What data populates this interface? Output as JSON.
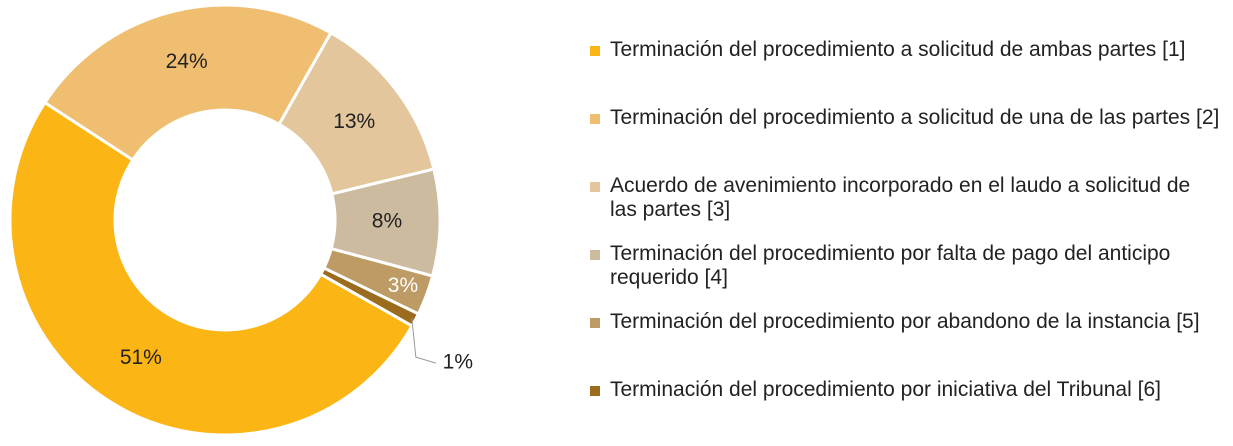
{
  "chart_data": {
    "type": "donut",
    "categories": [
      "Terminación del procedimiento a solicitud de ambas partes [1]",
      "Terminación del procedimiento a solicitud de una de las partes [2]",
      "Acuerdo de avenimiento incorporado en el laudo a solicitud de las partes [3]",
      "Terminación del procedimiento por falta de pago del anticipo requerido [4]",
      "Terminación del procedimiento por abandono de la instancia [5]",
      "Terminación del procedimiento por iniciativa del Tribunal [6]"
    ],
    "values": [
      51,
      24,
      13,
      8,
      3,
      1
    ],
    "value_labels": [
      "51%",
      "24%",
      "13%",
      "8%",
      "3%",
      "1%"
    ],
    "colors": [
      "#FBB515",
      "#EFBE70",
      "#E3C69C",
      "#CDBBA0",
      "#BE9B64",
      "#9B6B1E"
    ],
    "legend": "right"
  }
}
